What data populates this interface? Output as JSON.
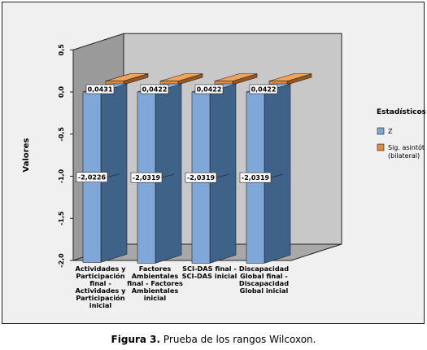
{
  "chart_data": {
    "type": "bar",
    "ylabel": "Valores",
    "ylim": [
      -2.0,
      0.5
    ],
    "yticks": [
      "0,5",
      "0,0",
      "-0,5",
      "-1,0",
      "-1,5",
      "-2,0"
    ],
    "ytick_values": [
      0.5,
      0.0,
      -0.5,
      -1.0,
      -1.5,
      -2.0
    ],
    "categories": [
      [
        "Actividades y",
        "Participación",
        "final -",
        "Actividades y",
        "Participación",
        "inicial"
      ],
      [
        "Factores",
        "Ambientales",
        "final - Factores",
        "Ambientales",
        "inicial"
      ],
      [
        "SCI-DAS final -",
        "SCI-DAS inicial"
      ],
      [
        "Discapacidad",
        "Global final -",
        "Discapacidad",
        "Global inicial"
      ]
    ],
    "series": [
      {
        "name": "Z",
        "values": [
          -2.0226,
          -2.0319,
          -2.0319,
          -2.0319
        ],
        "labels": [
          "-2,0226",
          "-2,0319",
          "-2,0319",
          "-2,0319"
        ]
      },
      {
        "name": "Sig. asintót. (bilateral)",
        "values": [
          0.0431,
          0.0422,
          0.0422,
          0.0422
        ],
        "labels": [
          "0,0431",
          "0,0422",
          "0,0422",
          "0,0422"
        ]
      }
    ],
    "legend": {
      "title": "Estadísticos",
      "placement": "right",
      "items": [
        {
          "lines": [
            "Z"
          ],
          "color": "#7fa8d8"
        },
        {
          "lines": [
            "Sig. asintót.",
            "(bilateral)"
          ],
          "color": "#e08a3c"
        }
      ]
    },
    "grid": false
  },
  "colors": {
    "z_front": "#7fa8d8",
    "z_side": "#3f6288",
    "z_top": "#8cb0dc",
    "sig_front": "#e08a3c",
    "sig_side": "#9a5520",
    "sig_top": "#f0a45a",
    "back_wall": "#c8c8c8",
    "side_wall": "#9a9a9a",
    "floor": "#a8a8a8"
  },
  "caption": {
    "label": "Figura 3.",
    "text": " Prueba de los rangos Wilcoxon."
  }
}
